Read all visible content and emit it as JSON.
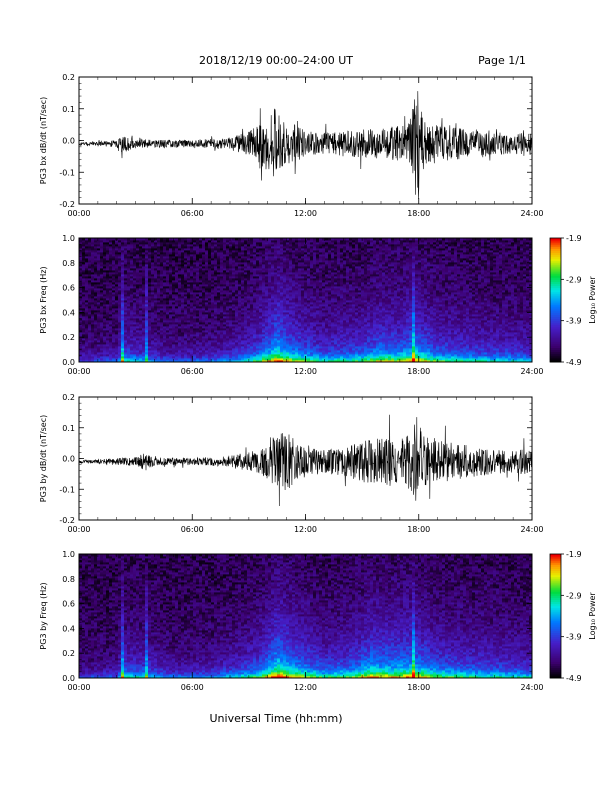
{
  "header": {
    "date_range": "2018/12/19   00:00–24:00 UT",
    "page": "Page 1/1"
  },
  "footer": {
    "xlabel": "Universal Time (hh:mm)"
  },
  "colors": {
    "trace": "#000000",
    "background": "#ffffff"
  },
  "chart_data": [
    {
      "type": "line",
      "ylabel": "PG3 bx dB/dt (nT/sec)",
      "xlim": [
        0,
        24
      ],
      "ylim": [
        -0.2,
        0.2
      ],
      "yticks": [
        "0.2",
        "0.1",
        "0.0",
        "-0.1",
        "-0.2"
      ],
      "xticks": [
        "00:00",
        "06:00",
        "12:00",
        "18:00",
        "24:00"
      ],
      "series": [
        {
          "x": [
            0,
            1,
            2,
            2.3,
            3,
            4,
            5,
            6,
            7,
            8,
            8.5,
            9,
            9.5,
            10,
            10.3,
            10.6,
            11,
            11.5,
            12,
            13,
            14,
            15,
            16,
            17,
            17.5,
            17.9,
            18.3,
            19,
            20,
            21,
            22,
            23,
            23.6,
            24
          ],
          "amplitude": [
            0.005,
            0.007,
            0.012,
            0.03,
            0.015,
            0.012,
            0.012,
            0.012,
            0.015,
            0.02,
            0.03,
            0.04,
            0.06,
            0.09,
            0.12,
            0.1,
            0.07,
            0.06,
            0.04,
            0.035,
            0.04,
            0.045,
            0.05,
            0.06,
            0.07,
            0.2,
            0.07,
            0.06,
            0.05,
            0.045,
            0.04,
            0.03,
            0.04,
            0.03
          ]
        }
      ]
    },
    {
      "type": "heatmap",
      "ylabel": "PG3 bx Freq (Hz)",
      "xlim": [
        0,
        24
      ],
      "ylim": [
        0,
        1.0
      ],
      "yticks": [
        "1.0",
        "0.8",
        "0.6",
        "0.4",
        "0.2",
        "0.0"
      ],
      "xticks": [
        "00:00",
        "06:00",
        "12:00",
        "18:00",
        "24:00"
      ],
      "colorbar": {
        "label": "Log₁₀ Power",
        "ticks": [
          "-1.9",
          "-2.9",
          "-3.9",
          "-4.9"
        ],
        "range": [
          -4.9,
          -1.9
        ]
      },
      "activity": {
        "x": [
          0,
          2,
          2.3,
          3.5,
          5,
          7,
          8.5,
          9.5,
          10.5,
          11.5,
          13,
          15,
          16,
          17,
          17.8,
          19,
          21,
          23,
          24
        ],
        "level": [
          0.15,
          0.2,
          0.5,
          0.35,
          0.2,
          0.25,
          0.4,
          0.6,
          0.95,
          0.7,
          0.5,
          0.6,
          0.75,
          0.7,
          0.85,
          0.6,
          0.5,
          0.45,
          0.4
        ]
      }
    },
    {
      "type": "line",
      "ylabel": "PG3 by dB/dt (nT/sec)",
      "xlim": [
        0,
        24
      ],
      "ylim": [
        -0.2,
        0.2
      ],
      "yticks": [
        "0.2",
        "0.1",
        "0.0",
        "-0.1",
        "-0.2"
      ],
      "xticks": [
        "00:00",
        "06:00",
        "12:00",
        "18:00",
        "24:00"
      ],
      "series": [
        {
          "x": [
            0,
            1,
            2,
            3,
            3.5,
            4,
            5,
            6,
            7,
            8,
            9,
            10,
            10.5,
            11,
            11.5,
            12,
            13,
            14,
            15,
            16,
            16.5,
            17,
            17.5,
            17.9,
            18.3,
            19,
            20,
            21,
            22,
            23,
            23.6,
            24
          ],
          "amplitude": [
            0.005,
            0.007,
            0.012,
            0.015,
            0.03,
            0.012,
            0.012,
            0.012,
            0.015,
            0.02,
            0.03,
            0.05,
            0.09,
            0.1,
            0.07,
            0.05,
            0.04,
            0.045,
            0.07,
            0.08,
            0.09,
            0.08,
            0.09,
            0.15,
            0.08,
            0.07,
            0.06,
            0.05,
            0.04,
            0.035,
            0.045,
            0.03
          ]
        }
      ]
    },
    {
      "type": "heatmap",
      "ylabel": "PG3 by Freq (Hz)",
      "xlim": [
        0,
        24
      ],
      "ylim": [
        0,
        1.0
      ],
      "yticks": [
        "1.0",
        "0.8",
        "0.6",
        "0.4",
        "0.2",
        "0.0"
      ],
      "xticks": [
        "00:00",
        "06:00",
        "12:00",
        "18:00",
        "24:00"
      ],
      "colorbar": {
        "label": "Log₁₀ Power",
        "ticks": [
          "-1.9",
          "-2.9",
          "-3.9",
          "-4.9"
        ],
        "range": [
          -4.9,
          -1.9
        ]
      },
      "activity": {
        "x": [
          0,
          2,
          2.3,
          3.5,
          5,
          7,
          8.5,
          9.5,
          10.5,
          11.5,
          13,
          14.5,
          15.5,
          16.5,
          17.8,
          19,
          21,
          23,
          24
        ],
        "level": [
          0.15,
          0.2,
          0.5,
          0.45,
          0.25,
          0.3,
          0.45,
          0.6,
          1.0,
          0.8,
          0.55,
          0.65,
          0.85,
          0.8,
          0.85,
          0.65,
          0.55,
          0.5,
          0.45
        ]
      }
    }
  ]
}
